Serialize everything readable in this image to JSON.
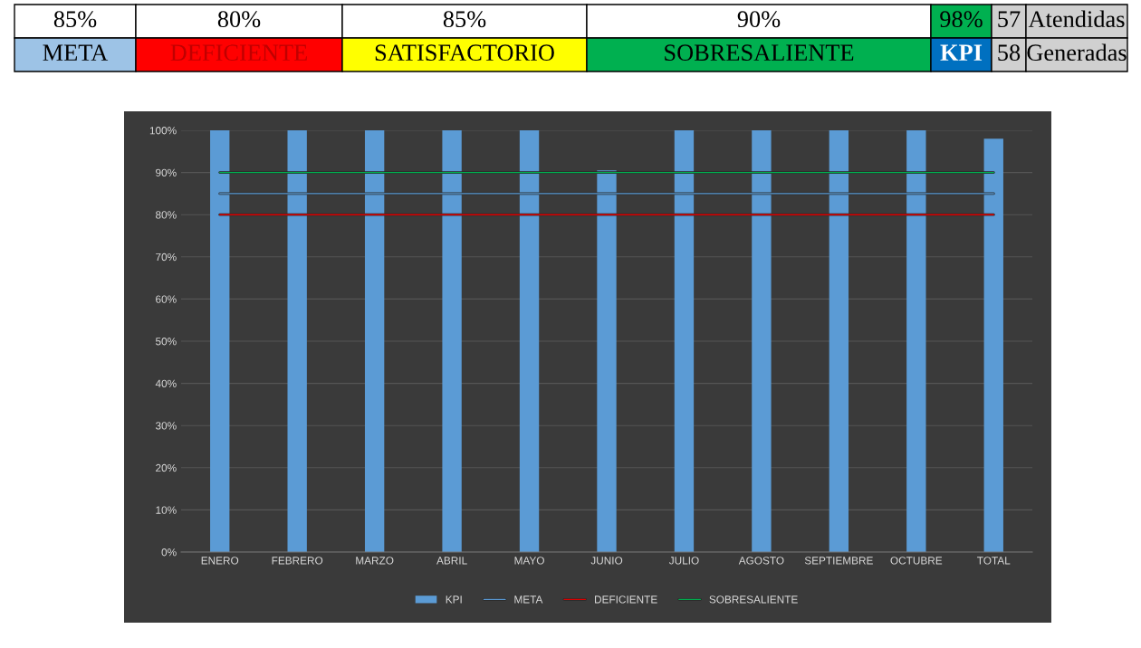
{
  "chart_data": {
    "type": "bar",
    "categories": [
      "ENERO",
      "FEBRERO",
      "MARZO",
      "ABRIL",
      "MAYO",
      "JUNIO",
      "JULIO",
      "AGOSTO",
      "SEPTIEMBRE",
      "OCTUBRE",
      "TOTAL"
    ],
    "series": [
      {
        "name": "KPI",
        "color": "#5b9bd5",
        "values": [
          100,
          100,
          100,
          100,
          100,
          90.5,
          100,
          100,
          100,
          100,
          98
        ]
      },
      {
        "name": "META",
        "type": "line",
        "color": "#5b9bd5",
        "values": [
          85,
          85,
          85,
          85,
          85,
          85,
          85,
          85,
          85,
          85,
          85
        ]
      },
      {
        "name": "DEFICIENTE",
        "type": "line",
        "color": "#e00000",
        "values": [
          80,
          80,
          80,
          80,
          80,
          80,
          80,
          80,
          80,
          80,
          80
        ]
      },
      {
        "name": "SOBRESALIENTE",
        "type": "line",
        "color": "#00b050",
        "values": [
          90,
          90,
          90,
          90,
          90,
          90,
          90,
          90,
          90,
          90,
          90
        ]
      }
    ],
    "ylim": [
      0,
      100
    ],
    "yticks": [
      {
        "value": 0,
        "label": "0%"
      },
      {
        "value": 10,
        "label": "10%"
      },
      {
        "value": 20,
        "label": "20%"
      },
      {
        "value": 30,
        "label": "30%"
      },
      {
        "value": 40,
        "label": "40%"
      },
      {
        "value": 50,
        "label": "50%"
      },
      {
        "value": 60,
        "label": "60%"
      },
      {
        "value": 70,
        "label": "70%"
      },
      {
        "value": 80,
        "label": "80%"
      },
      {
        "value": 90,
        "label": "90%"
      },
      {
        "value": 100,
        "label": "100%"
      }
    ],
    "grid": "y",
    "legend": "bottom",
    "marker": "none",
    "line_style": "solid",
    "annotations": [
      "85%",
      "80%",
      "85%",
      "90%",
      "98%",
      "57",
      "Atendidas",
      "META",
      "DEFICIENTE",
      "SATISFACTORIO",
      "SOBRESALIENTE",
      "KPI",
      "58",
      "Generadas"
    ]
  }
}
